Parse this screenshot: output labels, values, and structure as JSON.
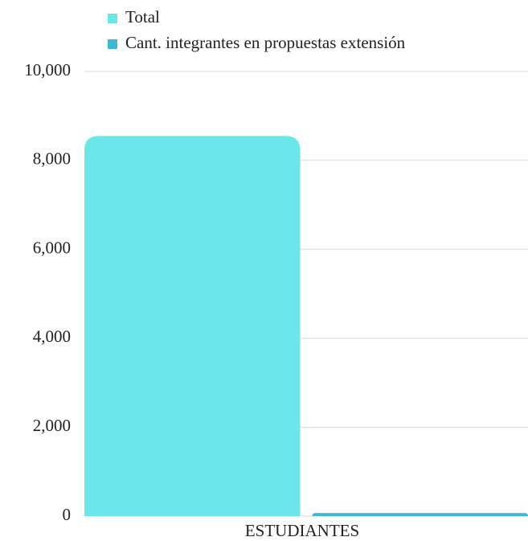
{
  "chart_data": {
    "type": "bar",
    "categories": [
      "ESTUDIANTES"
    ],
    "series": [
      {
        "name": "Total",
        "color": "#6ce6e8",
        "values": [
          8550
        ]
      },
      {
        "name": "Cant. integrantes en propuestas extensión",
        "color": "#3fb8d4",
        "values": [
          70
        ]
      }
    ],
    "ylim": [
      0,
      10000
    ],
    "yticks": [
      0,
      {
        "value": 2000,
        "label": "2,000"
      },
      {
        "value": 4000,
        "label": "4,000"
      },
      {
        "value": 6000,
        "label": "6,000"
      },
      {
        "value": 8000,
        "label": "8,000"
      },
      {
        "value": 10000,
        "label": "10,000"
      }
    ],
    "grid": true,
    "legend": "top"
  }
}
